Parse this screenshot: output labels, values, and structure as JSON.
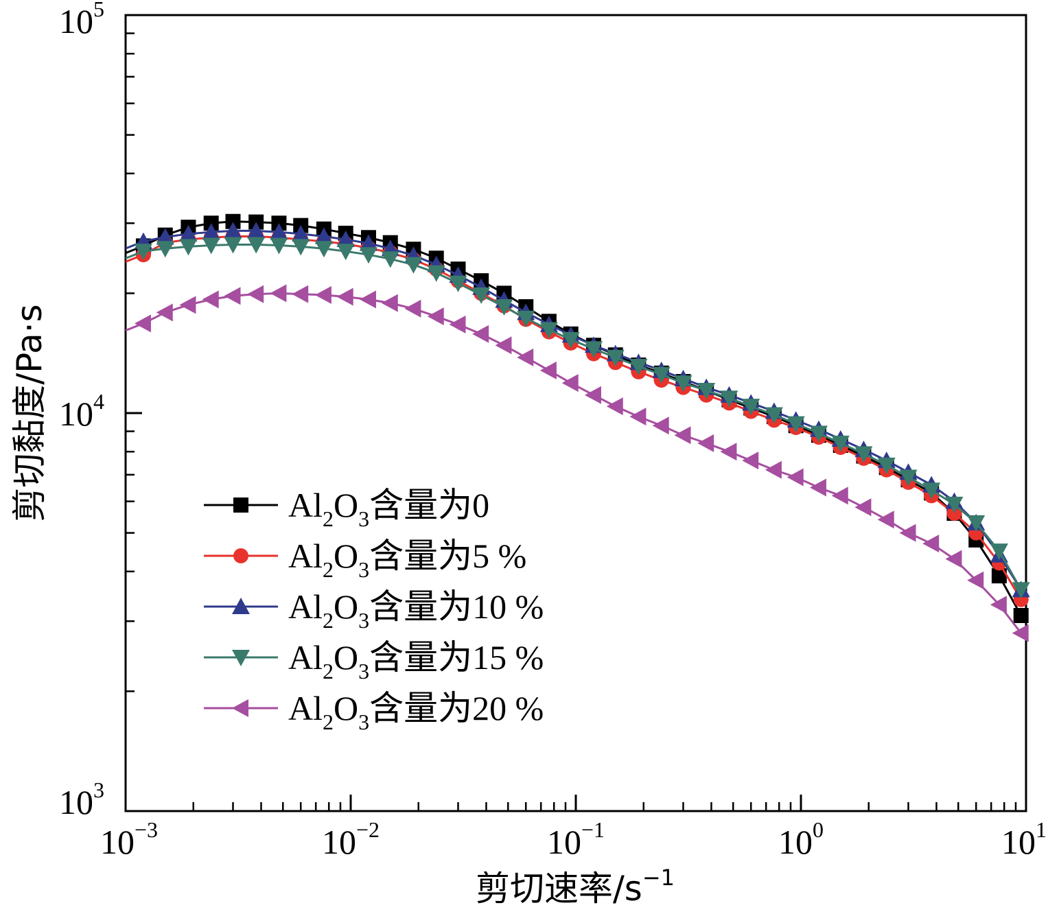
{
  "chart_data": {
    "type": "line",
    "title": "",
    "xlabel": "剪切速率/s",
    "xlabel_sup": "−1",
    "ylabel": "剪切黏度/Pa·s",
    "xscale": "log",
    "yscale": "log",
    "xlim": [
      0.001,
      10
    ],
    "ylim": [
      1000,
      100000
    ],
    "x_ticks": [
      {
        "value": 0.001,
        "base": "10",
        "exp": "−3"
      },
      {
        "value": 0.01,
        "base": "10",
        "exp": "−2"
      },
      {
        "value": 0.1,
        "base": "10",
        "exp": "−1"
      },
      {
        "value": 1,
        "base": "10",
        "exp": "0"
      },
      {
        "value": 10,
        "base": "10",
        "exp": "1"
      }
    ],
    "y_ticks": [
      {
        "value": 1000,
        "base": "10",
        "exp": "3"
      },
      {
        "value": 10000,
        "base": "10",
        "exp": "4"
      },
      {
        "value": 100000,
        "base": "10",
        "exp": "5"
      }
    ],
    "grid": false,
    "legend_position": "bottom-left",
    "x": [
      0.0012,
      0.0015,
      0.0019,
      0.0024,
      0.003,
      0.0038,
      0.0048,
      0.006,
      0.0076,
      0.0095,
      0.012,
      0.015,
      0.019,
      0.024,
      0.03,
      0.038,
      0.048,
      0.06,
      0.076,
      0.095,
      0.12,
      0.15,
      0.19,
      0.24,
      0.3,
      0.38,
      0.48,
      0.6,
      0.76,
      0.95,
      1.2,
      1.5,
      1.9,
      2.4,
      3.0,
      3.8,
      4.8,
      6.0,
      7.6,
      9.5
    ],
    "series": [
      {
        "name_prefix": "Al",
        "name_sub1": "2",
        "name_mid": "O",
        "name_sub2": "3",
        "name_suffix": "含量为0",
        "color": "#000000",
        "marker": "square",
        "values": [
          26300,
          28000,
          29300,
          30000,
          30300,
          30200,
          30000,
          29600,
          29000,
          28300,
          27600,
          26800,
          25800,
          24500,
          23000,
          21500,
          20000,
          18500,
          17000,
          15800,
          14800,
          14000,
          13200,
          12600,
          12000,
          11400,
          10800,
          10300,
          9800,
          9300,
          8800,
          8300,
          7800,
          7300,
          6800,
          6300,
          5600,
          4800,
          3900,
          3100
        ]
      },
      {
        "name_prefix": "Al",
        "name_sub1": "2",
        "name_mid": "O",
        "name_sub2": "3",
        "name_suffix": "含量为5 %",
        "color": "#e8322c",
        "marker": "circle",
        "values": [
          25000,
          26800,
          27300,
          27600,
          27800,
          27800,
          27600,
          27300,
          27000,
          26600,
          26000,
          25300,
          24300,
          23000,
          21500,
          20000,
          18600,
          17200,
          16000,
          15000,
          14100,
          13400,
          12700,
          12100,
          11600,
          11100,
          10600,
          10100,
          9600,
          9200,
          8700,
          8200,
          7700,
          7200,
          6700,
          6200,
          5600,
          5000,
          4200,
          3400
        ]
      },
      {
        "name_prefix": "Al",
        "name_sub1": "2",
        "name_mid": "O",
        "name_sub2": "3",
        "name_suffix": "含量为10 %",
        "color": "#2e3a8c",
        "marker": "triangle-up",
        "values": [
          27000,
          27700,
          28200,
          28500,
          28700,
          28700,
          28500,
          28200,
          27800,
          27300,
          26700,
          25900,
          24900,
          23600,
          22200,
          20700,
          19200,
          17900,
          16700,
          15700,
          14800,
          14100,
          13400,
          12800,
          12200,
          11600,
          11100,
          10600,
          10100,
          9600,
          9100,
          8600,
          8100,
          7600,
          7100,
          6600,
          6000,
          5300,
          4400,
          3600
        ]
      },
      {
        "name_prefix": "Al",
        "name_sub1": "2",
        "name_mid": "O",
        "name_sub2": "3",
        "name_suffix": "含量为15 %",
        "color": "#3a7a6c",
        "marker": "triangle-down",
        "values": [
          25500,
          25900,
          26200,
          26400,
          26500,
          26500,
          26400,
          26200,
          25900,
          25500,
          25000,
          24400,
          23600,
          22500,
          21200,
          19800,
          18500,
          17300,
          16200,
          15300,
          14500,
          13800,
          13100,
          12500,
          11900,
          11400,
          10900,
          10400,
          9900,
          9400,
          8900,
          8400,
          7900,
          7400,
          6900,
          6400,
          5900,
          5300,
          4500,
          3600
        ]
      },
      {
        "name_prefix": "Al",
        "name_sub1": "2",
        "name_mid": "O",
        "name_sub2": "3",
        "name_suffix": "含量为20 %",
        "color": "#a64ea0",
        "marker": "triangle-left",
        "values": [
          16800,
          17900,
          18700,
          19300,
          19700,
          19900,
          20000,
          19900,
          19800,
          19600,
          19300,
          18900,
          18300,
          17500,
          16700,
          15800,
          14800,
          13800,
          12800,
          11900,
          11100,
          10400,
          9800,
          9300,
          8800,
          8400,
          8000,
          7600,
          7200,
          6900,
          6500,
          6200,
          5800,
          5400,
          5000,
          4700,
          4300,
          3800,
          3300,
          2800
        ]
      }
    ]
  }
}
